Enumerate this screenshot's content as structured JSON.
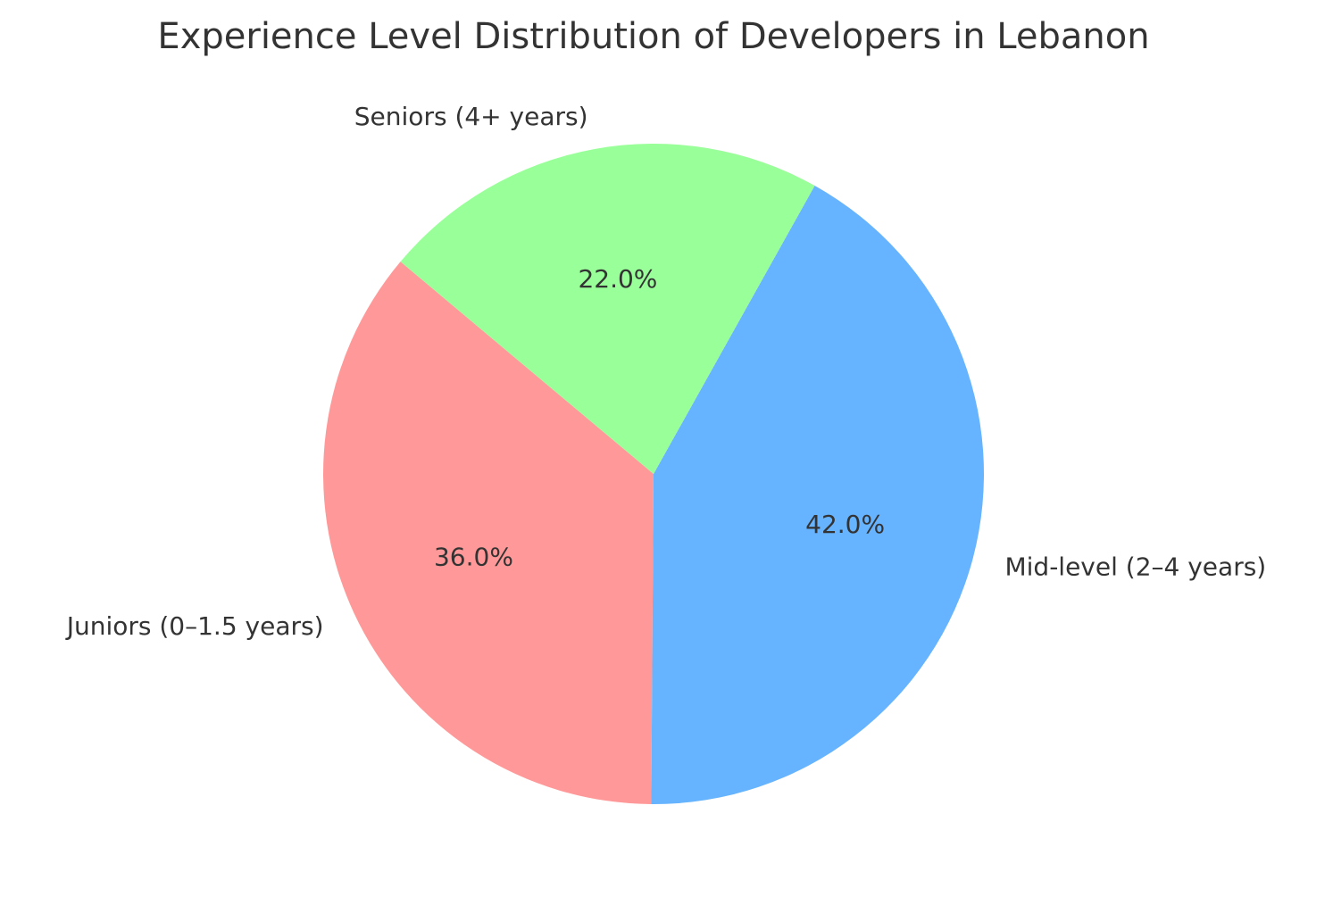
{
  "chart_data": {
    "type": "pie",
    "title": "Experience Level Distribution of Developers in Lebanon",
    "slices": [
      {
        "label": "Juniors (0–1.5 years)",
        "value": 36.0,
        "pct_label": "36.0%",
        "color": "#ff9999"
      },
      {
        "label": "Mid-level (2–4 years)",
        "value": 42.0,
        "pct_label": "42.0%",
        "color": "#66b3ff"
      },
      {
        "label": "Seniors (4+ years)",
        "value": 22.0,
        "pct_label": "22.0%",
        "color": "#99ff99"
      }
    ],
    "start_angle_deg": 140,
    "direction": "counterclockwise",
    "text_color": "#333333"
  }
}
